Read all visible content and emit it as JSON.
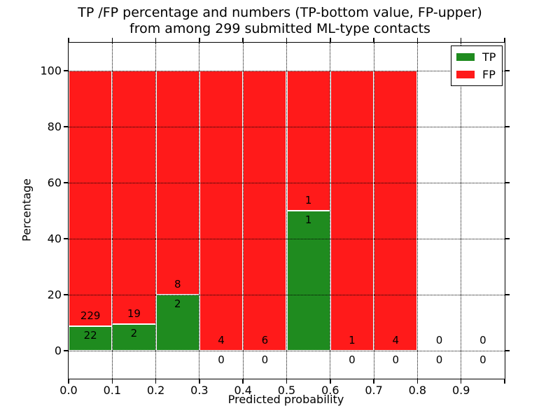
{
  "figure": {
    "title_line1": "TP /FP percentage and numbers (TP-bottom value, FP-upper)",
    "title_line2": "from among 299 submitted ML-type contacts"
  },
  "chart_data": {
    "type": "bar",
    "stacked": true,
    "title": "TP /FP percentage and numbers (TP-bottom value, FP-upper)\nfrom among 299 submitted ML-type contacts",
    "xlabel": "Predicted probability",
    "ylabel": "Percentage",
    "total_contacts": 299,
    "xlim": [
      0.0,
      1.0
    ],
    "ylim": [
      -10,
      110
    ],
    "grid": "dotted",
    "bin_width": 0.1,
    "bin_starts": [
      0.0,
      0.1,
      0.2,
      0.3,
      0.4,
      0.5,
      0.6,
      0.7,
      0.8,
      0.9
    ],
    "x_tick_labels": [
      "0.0",
      "0.1",
      "0.2",
      "0.3",
      "0.4",
      "0.5",
      "0.6",
      "0.7",
      "0.8",
      "0.9"
    ],
    "y_tick_values": [
      0,
      20,
      40,
      60,
      80,
      100
    ],
    "series": [
      {
        "name": "TP",
        "color": "#1f8b1f",
        "counts": [
          22,
          2,
          2,
          0,
          0,
          1,
          0,
          0,
          0,
          0
        ],
        "percentages": [
          8.76,
          9.52,
          20.0,
          0,
          0,
          50.0,
          0,
          0,
          0,
          0
        ]
      },
      {
        "name": "FP",
        "color": "#ff1a1a",
        "counts": [
          229,
          19,
          8,
          4,
          6,
          1,
          1,
          4,
          0,
          0
        ],
        "percentages": [
          91.24,
          90.48,
          80.0,
          100.0,
          100.0,
          50.0,
          100.0,
          100.0,
          0,
          0
        ]
      }
    ],
    "legend": {
      "position": "upper right",
      "entries": [
        {
          "label": "TP",
          "color": "#1f8b1f"
        },
        {
          "label": "FP",
          "color": "#ff1a1a"
        }
      ]
    }
  }
}
